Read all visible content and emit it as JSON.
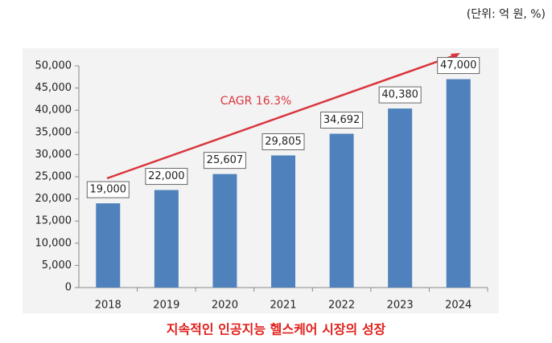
{
  "chart_data": {
    "type": "bar",
    "title": "지속적인 인공지능 헬스케어 시장의 성장",
    "unit_note": "(단위: 억 원, %)",
    "annotation": "CAGR 16.3%",
    "categories": [
      "2018",
      "2019",
      "2020",
      "2021",
      "2022",
      "2023",
      "2024"
    ],
    "values": [
      19000,
      22000,
      25607,
      29805,
      34692,
      40380,
      47000
    ],
    "value_labels": [
      "19,000",
      "22,000",
      "25,607",
      "29,805",
      "34,692",
      "40,380",
      "47,000"
    ],
    "color": "#4f81bd",
    "ylim": [
      0,
      50000
    ],
    "yticks": [
      0,
      {
        "value": 5000,
        "label": "5,000"
      },
      {
        "value": 10000,
        "label": "10,000"
      },
      {
        "value": 15000,
        "label": "15,000"
      },
      {
        "value": 20000,
        "label": "20,000"
      },
      {
        "value": 25000,
        "label": "25,000"
      },
      {
        "value": 30000,
        "label": "30,000"
      },
      {
        "value": 35000,
        "label": "35,000"
      },
      {
        "value": 40000,
        "label": "40,000"
      },
      {
        "value": 45000,
        "label": "45,000"
      },
      {
        "value": 50000,
        "label": "50,000"
      }
    ]
  }
}
